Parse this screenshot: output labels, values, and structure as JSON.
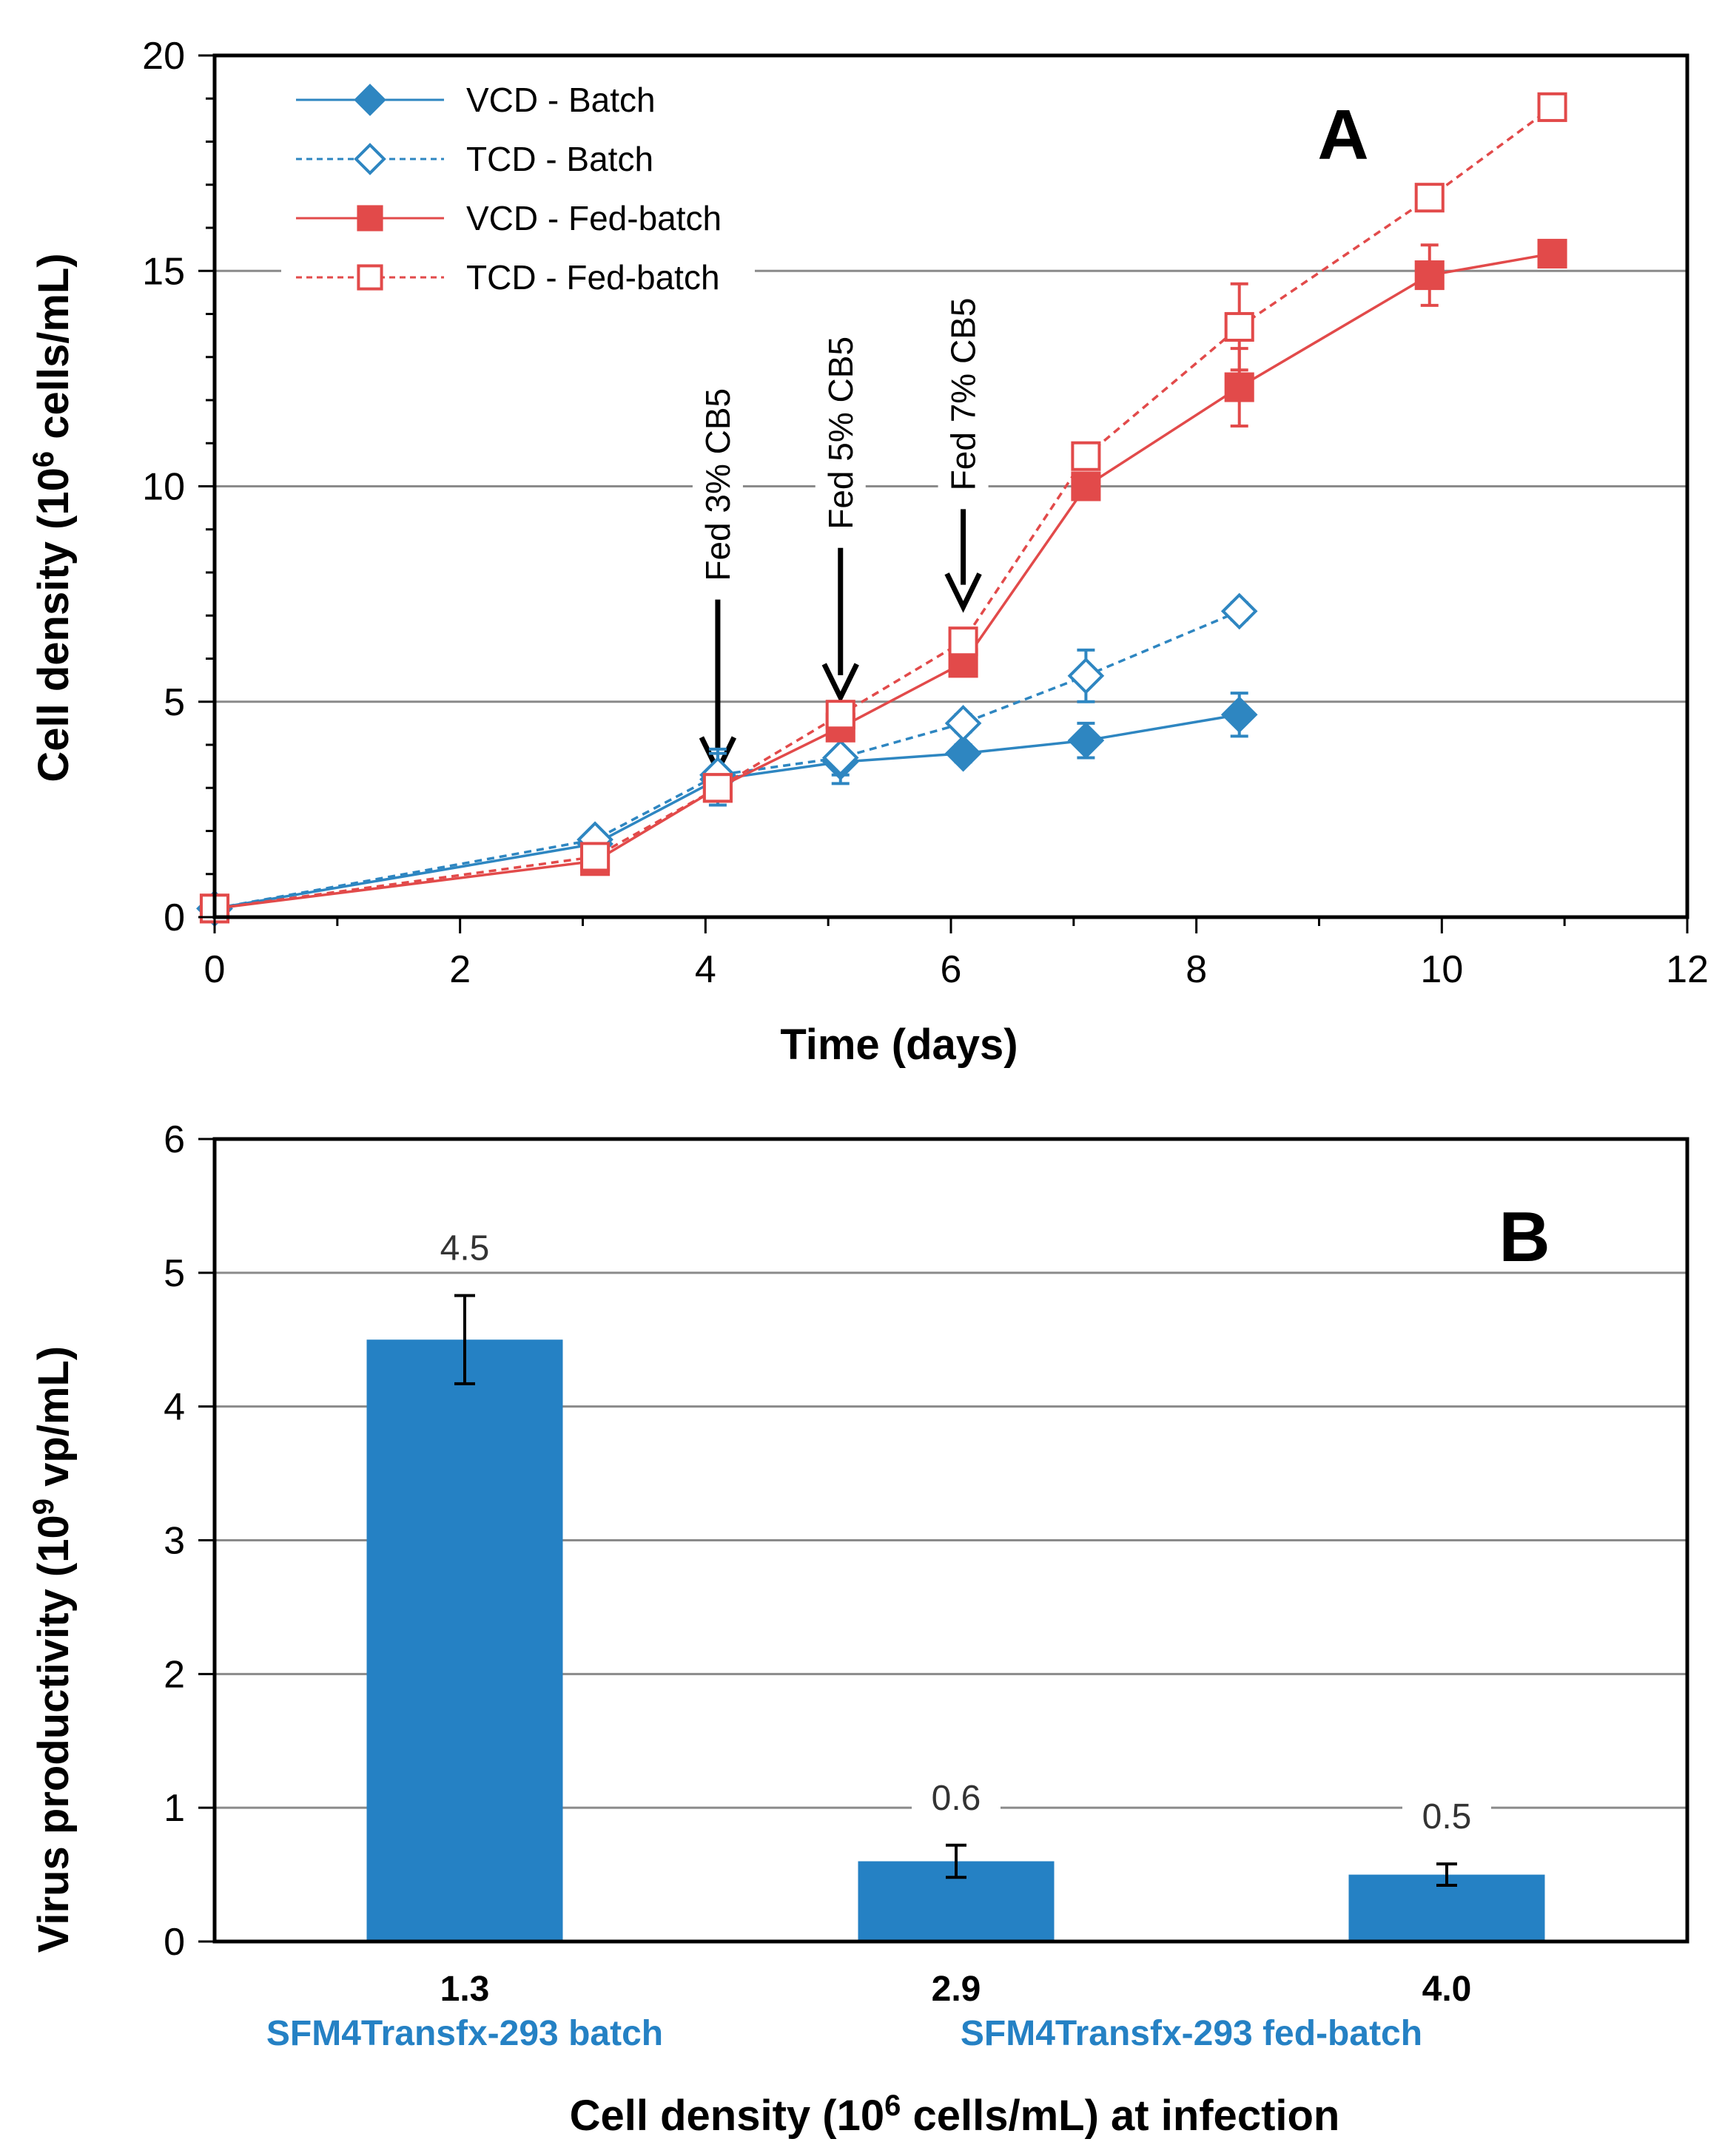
{
  "chart_data": [
    {
      "panel": "A",
      "type": "line",
      "xlabel": "Time (days)",
      "ylabel": {
        "pre": "Cell density (10",
        "sup": "6",
        "post": " cells/mL)"
      },
      "xlim": [
        0,
        12
      ],
      "ylim": [
        0,
        20
      ],
      "xticks": [
        0,
        2,
        4,
        6,
        8,
        10,
        12
      ],
      "yticks": [
        0,
        5,
        10,
        15,
        20
      ],
      "grid": "horizontal",
      "legend_position": "top-left",
      "series": [
        {
          "name": "VCD - Batch",
          "color": "#2E86C1",
          "marker": "diamond",
          "filled": true,
          "dashed": false,
          "x": [
            0,
            3.1,
            4.1,
            5.1,
            6.1,
            7.1,
            8.35
          ],
          "y": [
            0.2,
            1.7,
            3.2,
            3.6,
            3.8,
            4.1,
            4.7
          ],
          "err": [
            0,
            0,
            0.6,
            0.5,
            0.2,
            0.4,
            0.5
          ]
        },
        {
          "name": "TCD - Batch",
          "color": "#2E86C1",
          "marker": "diamond",
          "filled": false,
          "dashed": true,
          "x": [
            0,
            3.1,
            4.1,
            5.1,
            6.1,
            7.1,
            8.35
          ],
          "y": [
            0.2,
            1.8,
            3.3,
            3.7,
            4.5,
            5.6,
            7.1
          ],
          "err": [
            0,
            0,
            0.6,
            0.4,
            0.2,
            0.6,
            0.2
          ]
        },
        {
          "name": "VCD - Fed-batch",
          "color": "#E24A4A",
          "marker": "square",
          "filled": true,
          "dashed": false,
          "x": [
            0,
            3.1,
            4.1,
            5.1,
            6.1,
            7.1,
            8.35,
            9.9,
            10.9
          ],
          "y": [
            0.2,
            1.3,
            3.0,
            4.4,
            5.9,
            10.0,
            12.3,
            14.9,
            15.4
          ],
          "err": [
            0,
            0,
            0.3,
            0.2,
            0.2,
            0.3,
            0.9,
            0.7,
            0.2
          ]
        },
        {
          "name": "TCD - Fed-batch",
          "color": "#E24A4A",
          "marker": "square",
          "filled": false,
          "dashed": true,
          "x": [
            0,
            3.1,
            4.1,
            5.1,
            6.1,
            7.1,
            8.35,
            9.9,
            10.9
          ],
          "y": [
            0.2,
            1.4,
            3.0,
            4.7,
            6.4,
            10.7,
            13.7,
            16.7,
            18.8
          ],
          "err": [
            0,
            0,
            0.3,
            0.2,
            0.2,
            0.3,
            1.0,
            0.3,
            0.2
          ]
        }
      ],
      "annotations": [
        {
          "text": "Fed 3% CB5",
          "x": 4.1
        },
        {
          "text": "Fed 5% CB5",
          "x": 5.1
        },
        {
          "text": "Fed 7% CB5",
          "x": 6.1
        }
      ]
    },
    {
      "panel": "B",
      "type": "bar",
      "xlabel": {
        "pre": "Cell density (10",
        "sup": "6",
        "post": " cells/mL) at infection"
      },
      "ylabel": {
        "pre": "Virus productivity (10",
        "sup": "9",
        "post": " vp/mL)"
      },
      "ylim": [
        0,
        6
      ],
      "yticks": [
        0,
        1,
        2,
        3,
        4,
        5,
        6
      ],
      "grid": "horizontal",
      "bar_color": "#2581C4",
      "categories": [
        "1.3",
        "2.9",
        "4.0"
      ],
      "values": [
        4.5,
        0.6,
        0.5
      ],
      "errors": [
        0.33,
        0.12,
        0.08
      ],
      "data_labels": [
        "4.5",
        "0.6",
        "0.5"
      ],
      "group_labels": [
        "SFM4Transfx-293 batch",
        "SFM4Transfx-293 fed-batch"
      ],
      "group_label_color": "#2581C4"
    }
  ]
}
